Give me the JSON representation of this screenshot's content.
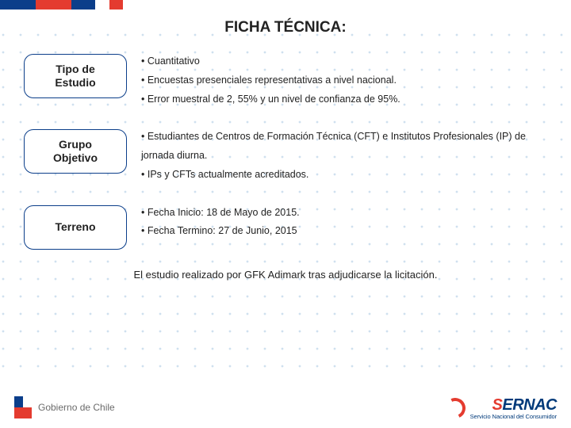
{
  "title": "FICHA TÉCNICA:",
  "topbar_colors": [
    "#0b3e8a",
    "#e43b2f",
    "#0b3e8a",
    "#ffffff",
    "#e43b2f"
  ],
  "topbar_widths": [
    45,
    45,
    30,
    18,
    17
  ],
  "dot_color": "#cfe0ef",
  "dot_spacing": 22,
  "dot_radius": 1.4,
  "sections": [
    {
      "label": "Tipo de\nEstudio",
      "border_color": "#0b3e8a",
      "bullets": [
        "• Cuantitativo",
        "• Encuestas presenciales representativas a nivel nacional.",
        "• Error muestral de 2, 55% y un nivel de confianza de 95%."
      ]
    },
    {
      "label": "Grupo\nObjetivo",
      "border_color": "#0b3e8a",
      "bullets": [
        "• Estudiantes  de  Centros  de  Formación  Técnica  (CFT)  e Institutos Profesionales (IP) de jornada diurna.",
        "• IPs y CFTs actualmente acreditados."
      ]
    },
    {
      "label": "Terreno",
      "border_color": "#0b3e8a",
      "bullets": [
        "• Fecha Inicio: 18 de Mayo de 2015.",
        "• Fecha Termino: 27 de Junio, 2015"
      ]
    }
  ],
  "footnote": "El estudio realizado por GFK Adimark tras adjudicarse la licitación.",
  "footer": {
    "gov_text": "Gobierno de Chile",
    "flag_colors": {
      "blue": "#0b3e8a",
      "white": "#ffffff",
      "red": "#e43b2f"
    },
    "sernac_name": "SERNAC",
    "sernac_color_s": "#e43b2f",
    "sernac_color_rest": "#003a7a",
    "sernac_sub": "Servicio Nacional del Consumidor"
  }
}
